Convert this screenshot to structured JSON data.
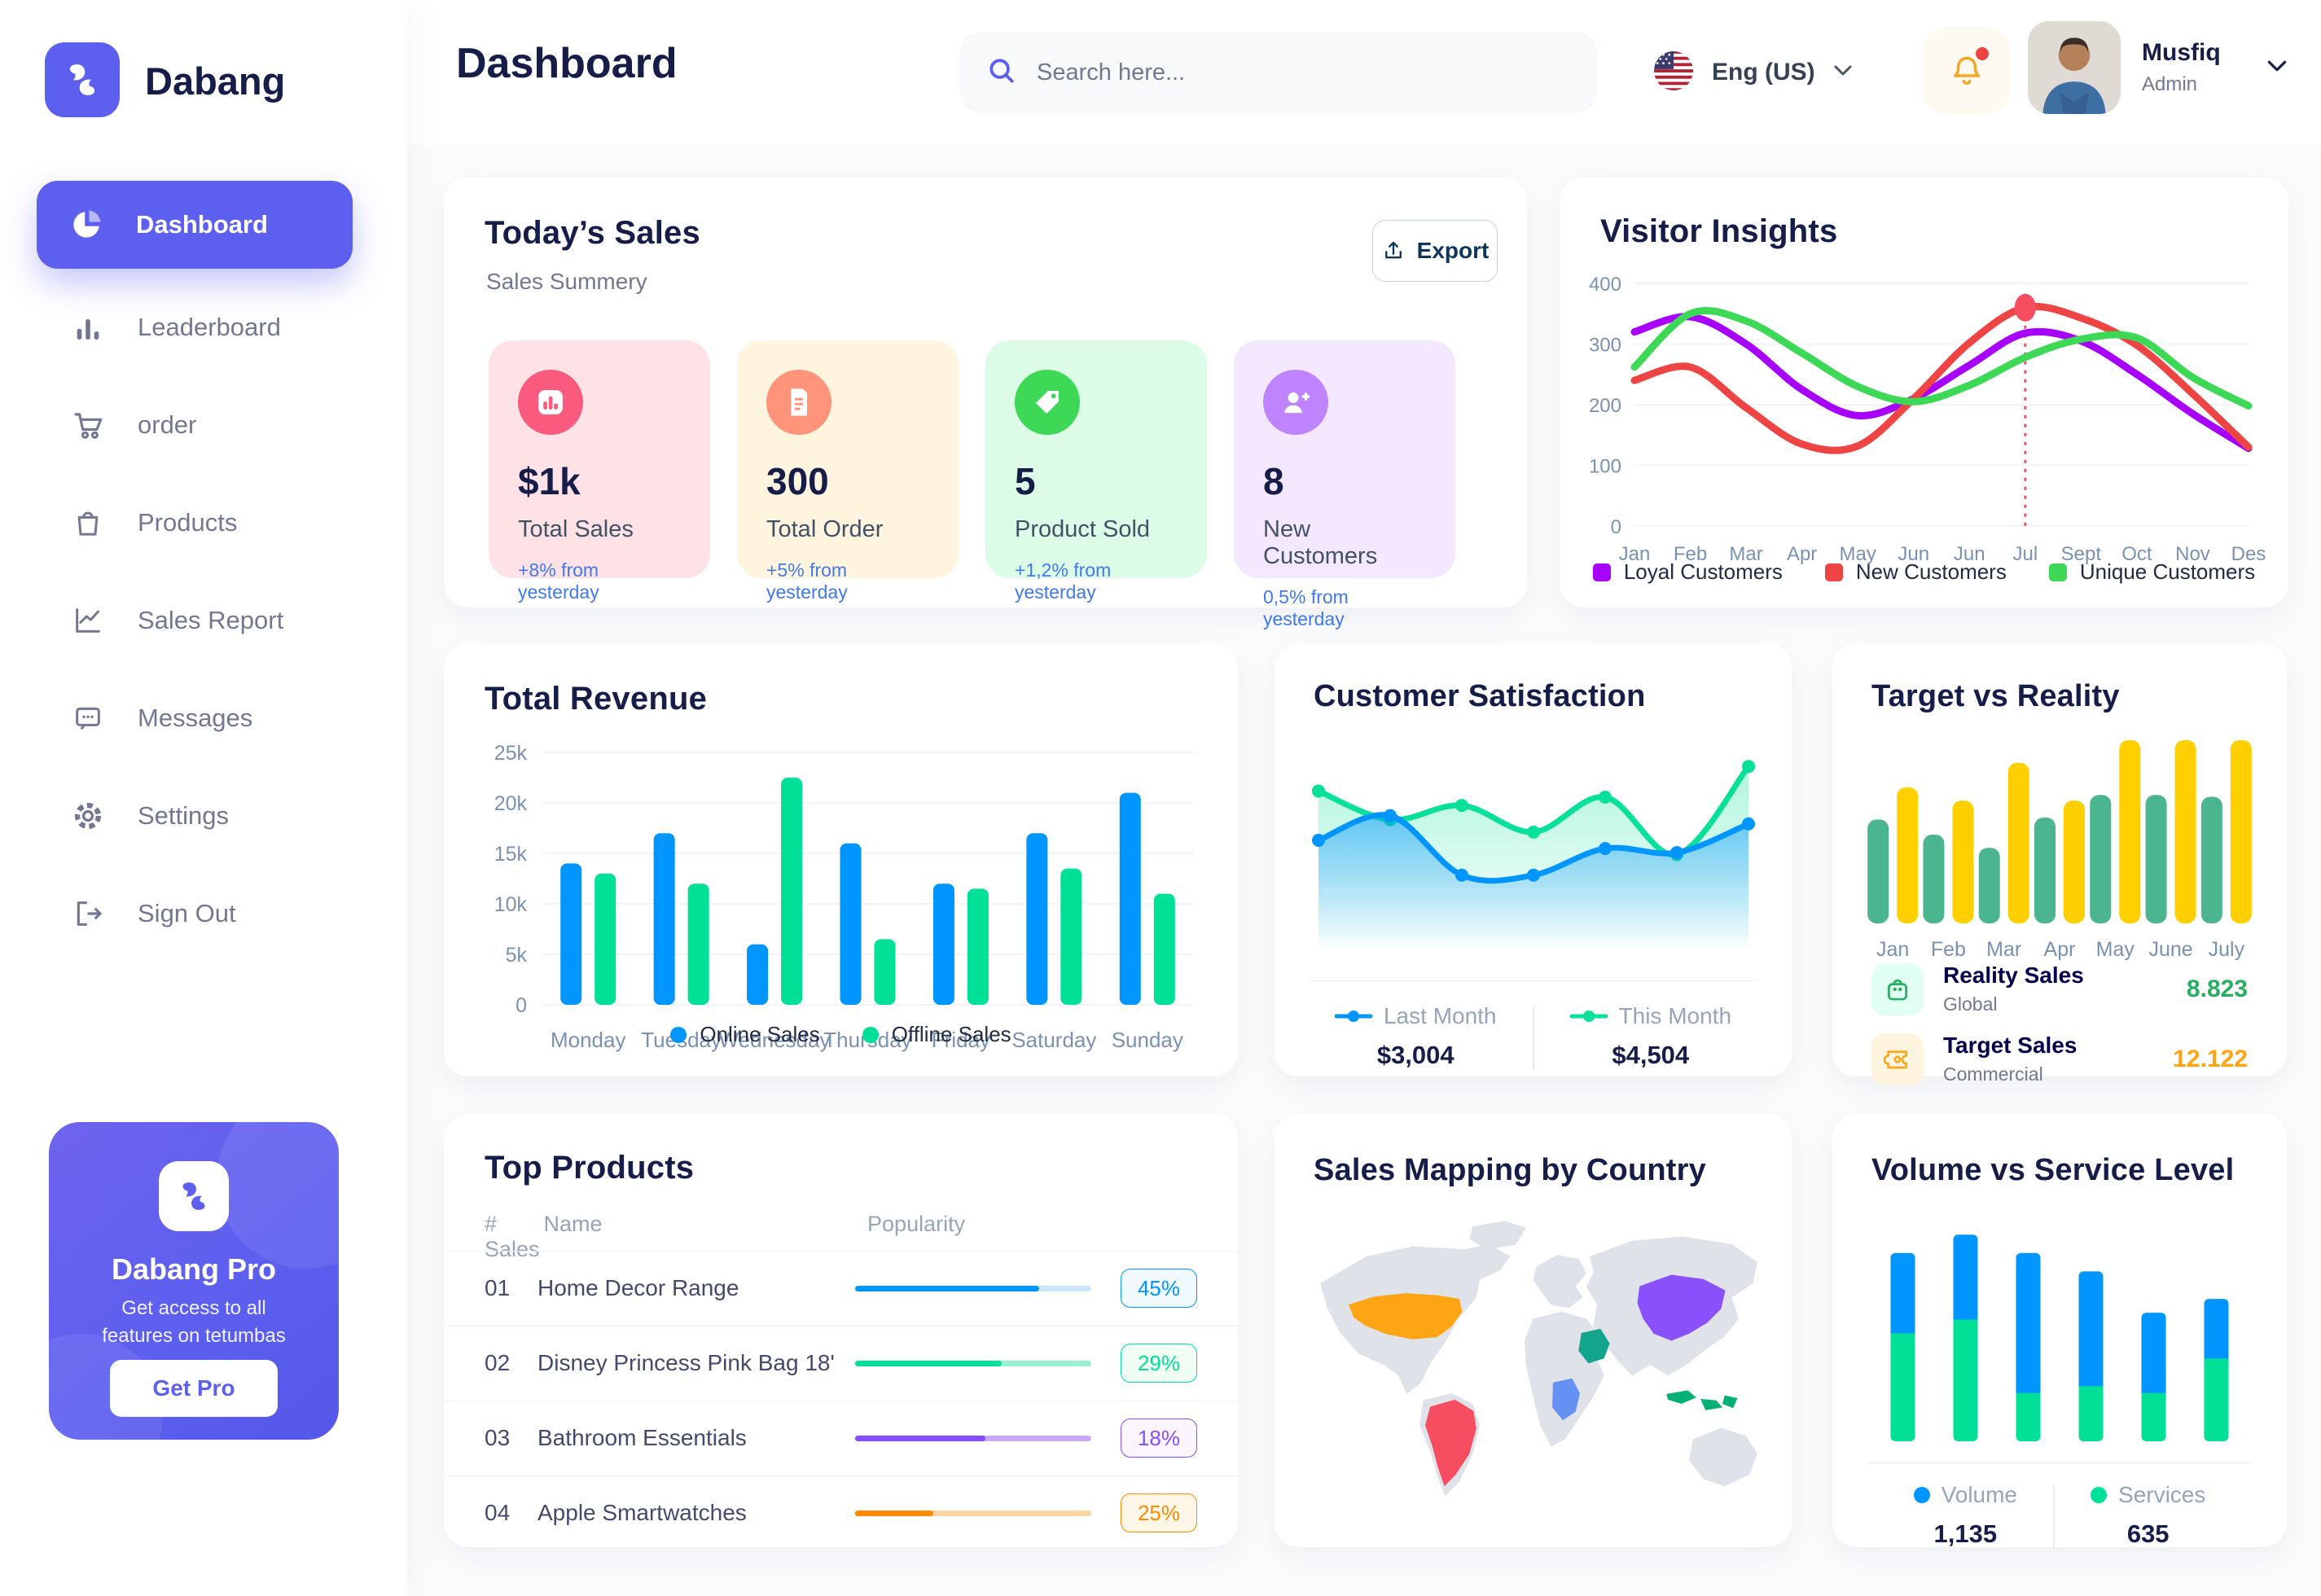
{
  "app": {
    "name": "Dabang",
    "accent": "#5D5FEF"
  },
  "sidebar": {
    "items": [
      {
        "label": "Dashboard",
        "icon": "pie-chart-icon",
        "active": true
      },
      {
        "label": "Leaderboard",
        "icon": "bar-chart-icon",
        "active": false
      },
      {
        "label": "order",
        "icon": "cart-icon",
        "active": false
      },
      {
        "label": "Products",
        "icon": "bag-icon",
        "active": false
      },
      {
        "label": "Sales Report",
        "icon": "line-chart-icon",
        "active": false
      },
      {
        "label": "Messages",
        "icon": "message-icon",
        "active": false
      },
      {
        "label": "Settings",
        "icon": "gear-icon",
        "active": false
      },
      {
        "label": "Sign Out",
        "icon": "sign-out-icon",
        "active": false
      }
    ],
    "pro": {
      "title": "Dabang Pro",
      "subtitle": "Get access to all features on tetumbas",
      "button": "Get Pro"
    }
  },
  "header": {
    "title": "Dashboard",
    "search_placeholder": "Search here...",
    "language": "Eng (US)",
    "user": {
      "name": "Musfiq",
      "role": "Admin"
    }
  },
  "todays_sales": {
    "title": "Today’s Sales",
    "subtitle": "Sales Summery",
    "export_label": "Export",
    "stats": [
      {
        "value": "$1k",
        "label": "Total Sales",
        "delta": "+8% from yesterday",
        "bg": "#FFE2E5",
        "accent": "#FA5A7D",
        "icon": "graph-icon"
      },
      {
        "value": "300",
        "label": "Total Order",
        "delta": "+5% from yesterday",
        "bg": "#FFF4DE",
        "accent": "#FF947A",
        "icon": "receipt-icon"
      },
      {
        "value": "5",
        "label": "Product Sold",
        "delta": "+1,2% from yesterday",
        "bg": "#DCFCE7",
        "accent": "#3CD856",
        "icon": "tag-icon"
      },
      {
        "value": "8",
        "label": "New Customers",
        "delta": "0,5% from yesterday",
        "bg": "#F3E8FF",
        "accent": "#BF83FF",
        "icon": "user-plus-icon"
      }
    ]
  },
  "charts": {
    "visitor_insights": {
      "type": "line",
      "title": "Visitor Insights",
      "x": [
        "Jan",
        "Feb",
        "Mar",
        "Apr",
        "May",
        "Jun",
        "Jun",
        "Jul",
        "Sept",
        "Oct",
        "Nov",
        "Des"
      ],
      "yticks": [
        0,
        100,
        200,
        300,
        400
      ],
      "ylim": [
        0,
        400
      ],
      "series": [
        {
          "name": "Loyal Customers",
          "color": "#A700FF",
          "values": [
            320,
            345,
            300,
            225,
            182,
            210,
            265,
            318,
            305,
            250,
            185,
            128
          ]
        },
        {
          "name": "New Customers",
          "color": "#EF4444",
          "values": [
            240,
            262,
            195,
            135,
            132,
            210,
            302,
            360,
            343,
            298,
            218,
            130
          ]
        },
        {
          "name": "Unique Customers",
          "color": "#3CD856",
          "values": [
            262,
            350,
            338,
            285,
            230,
            205,
            232,
            278,
            308,
            310,
            245,
            198
          ]
        }
      ],
      "marker": {
        "series": 1,
        "index": 7
      }
    },
    "total_revenue": {
      "type": "bar",
      "title": "Total Revenue",
      "categories": [
        "Monday",
        "Tuesday",
        "Wednesday",
        "Thursday",
        "Friday",
        "Saturday",
        "Sunday"
      ],
      "yticks": [
        0,
        5000,
        10000,
        15000,
        20000,
        25000
      ],
      "ytick_labels": [
        "0",
        "5k",
        "10k",
        "15k",
        "20k",
        "25k"
      ],
      "ylim": [
        0,
        25000
      ],
      "series": [
        {
          "name": "Online Sales",
          "color": "#0095FF",
          "values": [
            14000,
            17000,
            6000,
            16000,
            12000,
            17000,
            21000
          ]
        },
        {
          "name": "Offline Sales",
          "color": "#00E096",
          "values": [
            13000,
            12000,
            22500,
            6500,
            11500,
            13500,
            11000
          ]
        }
      ]
    },
    "customer_satisfaction": {
      "type": "area",
      "title": "Customer Satisfaction",
      "series": [
        {
          "name": "This Month",
          "color": "#07E098",
          "total": "$4,504",
          "values": [
            78,
            64,
            71,
            58,
            75,
            47,
            90
          ]
        },
        {
          "name": "Last Month",
          "color": "#0095FF",
          "total": "$3,004",
          "values": [
            54,
            66,
            37,
            37,
            50,
            48,
            62
          ]
        }
      ],
      "legend_order": [
        "Last Month",
        "This Month"
      ]
    },
    "target_vs_reality": {
      "type": "bar",
      "title": "Target vs Reality",
      "categories": [
        "Jan",
        "Feb",
        "Mar",
        "Apr",
        "May",
        "June",
        "July"
      ],
      "ylim": [
        0,
        100
      ],
      "series": [
        {
          "name": "Reality Sales",
          "color": "#4AB58E",
          "values": [
            55,
            47,
            40,
            56,
            68,
            68,
            67
          ]
        },
        {
          "name": "Target Sales",
          "color": "#FFCF00",
          "values": [
            72,
            65,
            85,
            65,
            97,
            97,
            97
          ]
        }
      ],
      "legend": [
        {
          "name": "Reality Sales",
          "sub": "Global",
          "value": "8.823",
          "value_color": "#27AE60",
          "tile_bg": "#E2FFF3",
          "icon": "bag-small-icon",
          "icon_color": "#27AE60"
        },
        {
          "name": "Target Sales",
          "sub": "Commercial",
          "value": "12.122",
          "value_color": "#FFA412",
          "tile_bg": "#FFF4DE",
          "icon": "ticket-small-icon",
          "icon_color": "#FFA412"
        }
      ]
    },
    "volume_service": {
      "type": "stacked-bar",
      "title": "Volume vs Service Level",
      "ylim": [
        0,
        100
      ],
      "series": [
        {
          "name": "Volume",
          "color": "#0095FF",
          "total": "1,135",
          "values": [
            35,
            37,
            61,
            50,
            35,
            26
          ]
        },
        {
          "name": "Services",
          "color": "#00E096",
          "total": "635",
          "values": [
            47,
            53,
            21,
            24,
            21,
            36
          ]
        }
      ]
    }
  },
  "top_products": {
    "title": "Top Products",
    "columns": [
      "#",
      "Name",
      "Popularity",
      "Sales"
    ],
    "rows": [
      {
        "num": "01",
        "name": "Home Decor Range",
        "fill_pct": 78,
        "color": "#0095FF",
        "track": "#CDE7FF",
        "badge": "45%",
        "badge_bg": "#F0F9FF"
      },
      {
        "num": "02",
        "name": "Disney Princess Pink Bag 18'",
        "fill_pct": 62,
        "color": "#00E096",
        "track": "#9BF0D3",
        "badge": "29%",
        "badge_bg": "#F0FDF4"
      },
      {
        "num": "03",
        "name": "Bathroom Essentials",
        "fill_pct": 55,
        "color": "#884DFF",
        "track": "#C9A9FA",
        "badge": "18%",
        "badge_bg": "#FBF5FF"
      },
      {
        "num": "04",
        "name": "Apple Smartwatches",
        "fill_pct": 33,
        "color": "#FF8900",
        "track": "#FFD5A4",
        "badge": "25%",
        "badge_bg": "#FEF6E6"
      }
    ]
  },
  "sales_mapping": {
    "title": "Sales Mapping by Country",
    "highlighted_countries": [
      {
        "name": "United States",
        "color": "#FFA412"
      },
      {
        "name": "Brazil",
        "color": "#F64E60"
      },
      {
        "name": "Saudi Arabia",
        "color": "#12A58C"
      },
      {
        "name": "DR Congo",
        "color": "#6491F2"
      },
      {
        "name": "China",
        "color": "#8950FC"
      },
      {
        "name": "Indonesia",
        "color": "#00B074"
      }
    ]
  }
}
